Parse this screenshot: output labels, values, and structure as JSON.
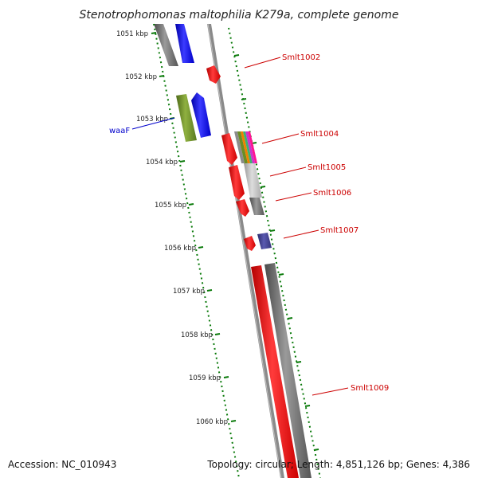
{
  "title": "Stenotrophomonas maltophilia K279a, complete genome",
  "footer": {
    "accession": "Accession: NC_010943",
    "summary": "Topology: circular; Length: 4,851,126 bp; Genes: 4,386"
  },
  "colors": {
    "backbone": "#8c8c8c",
    "ruler": "#0a7a0a",
    "red_gene": "#ff0000",
    "red_label": "#cc0000",
    "blue_gene": "#0000ff",
    "blue_label": "#0000cc",
    "olive_gene": "#6b8e23",
    "grey_gene": "#666666",
    "purple_gene": "#3b3b8c"
  },
  "ruler": {
    "ticks": [
      "1051 kbp",
      "1052 kbp",
      "1053 kbp",
      "1054 kbp",
      "1055 kbp",
      "1056 kbp",
      "1057 kbp",
      "1058 kbp",
      "1059 kbp",
      "1060 kbp"
    ]
  },
  "labels": {
    "waaF": "waaF",
    "smlt1002": "Smlt1002",
    "smlt1004": "Smlt1004",
    "smlt1005": "Smlt1005",
    "smlt1006": "Smlt1006",
    "smlt1007": "Smlt1007",
    "smlt1009": "Smlt1009"
  }
}
